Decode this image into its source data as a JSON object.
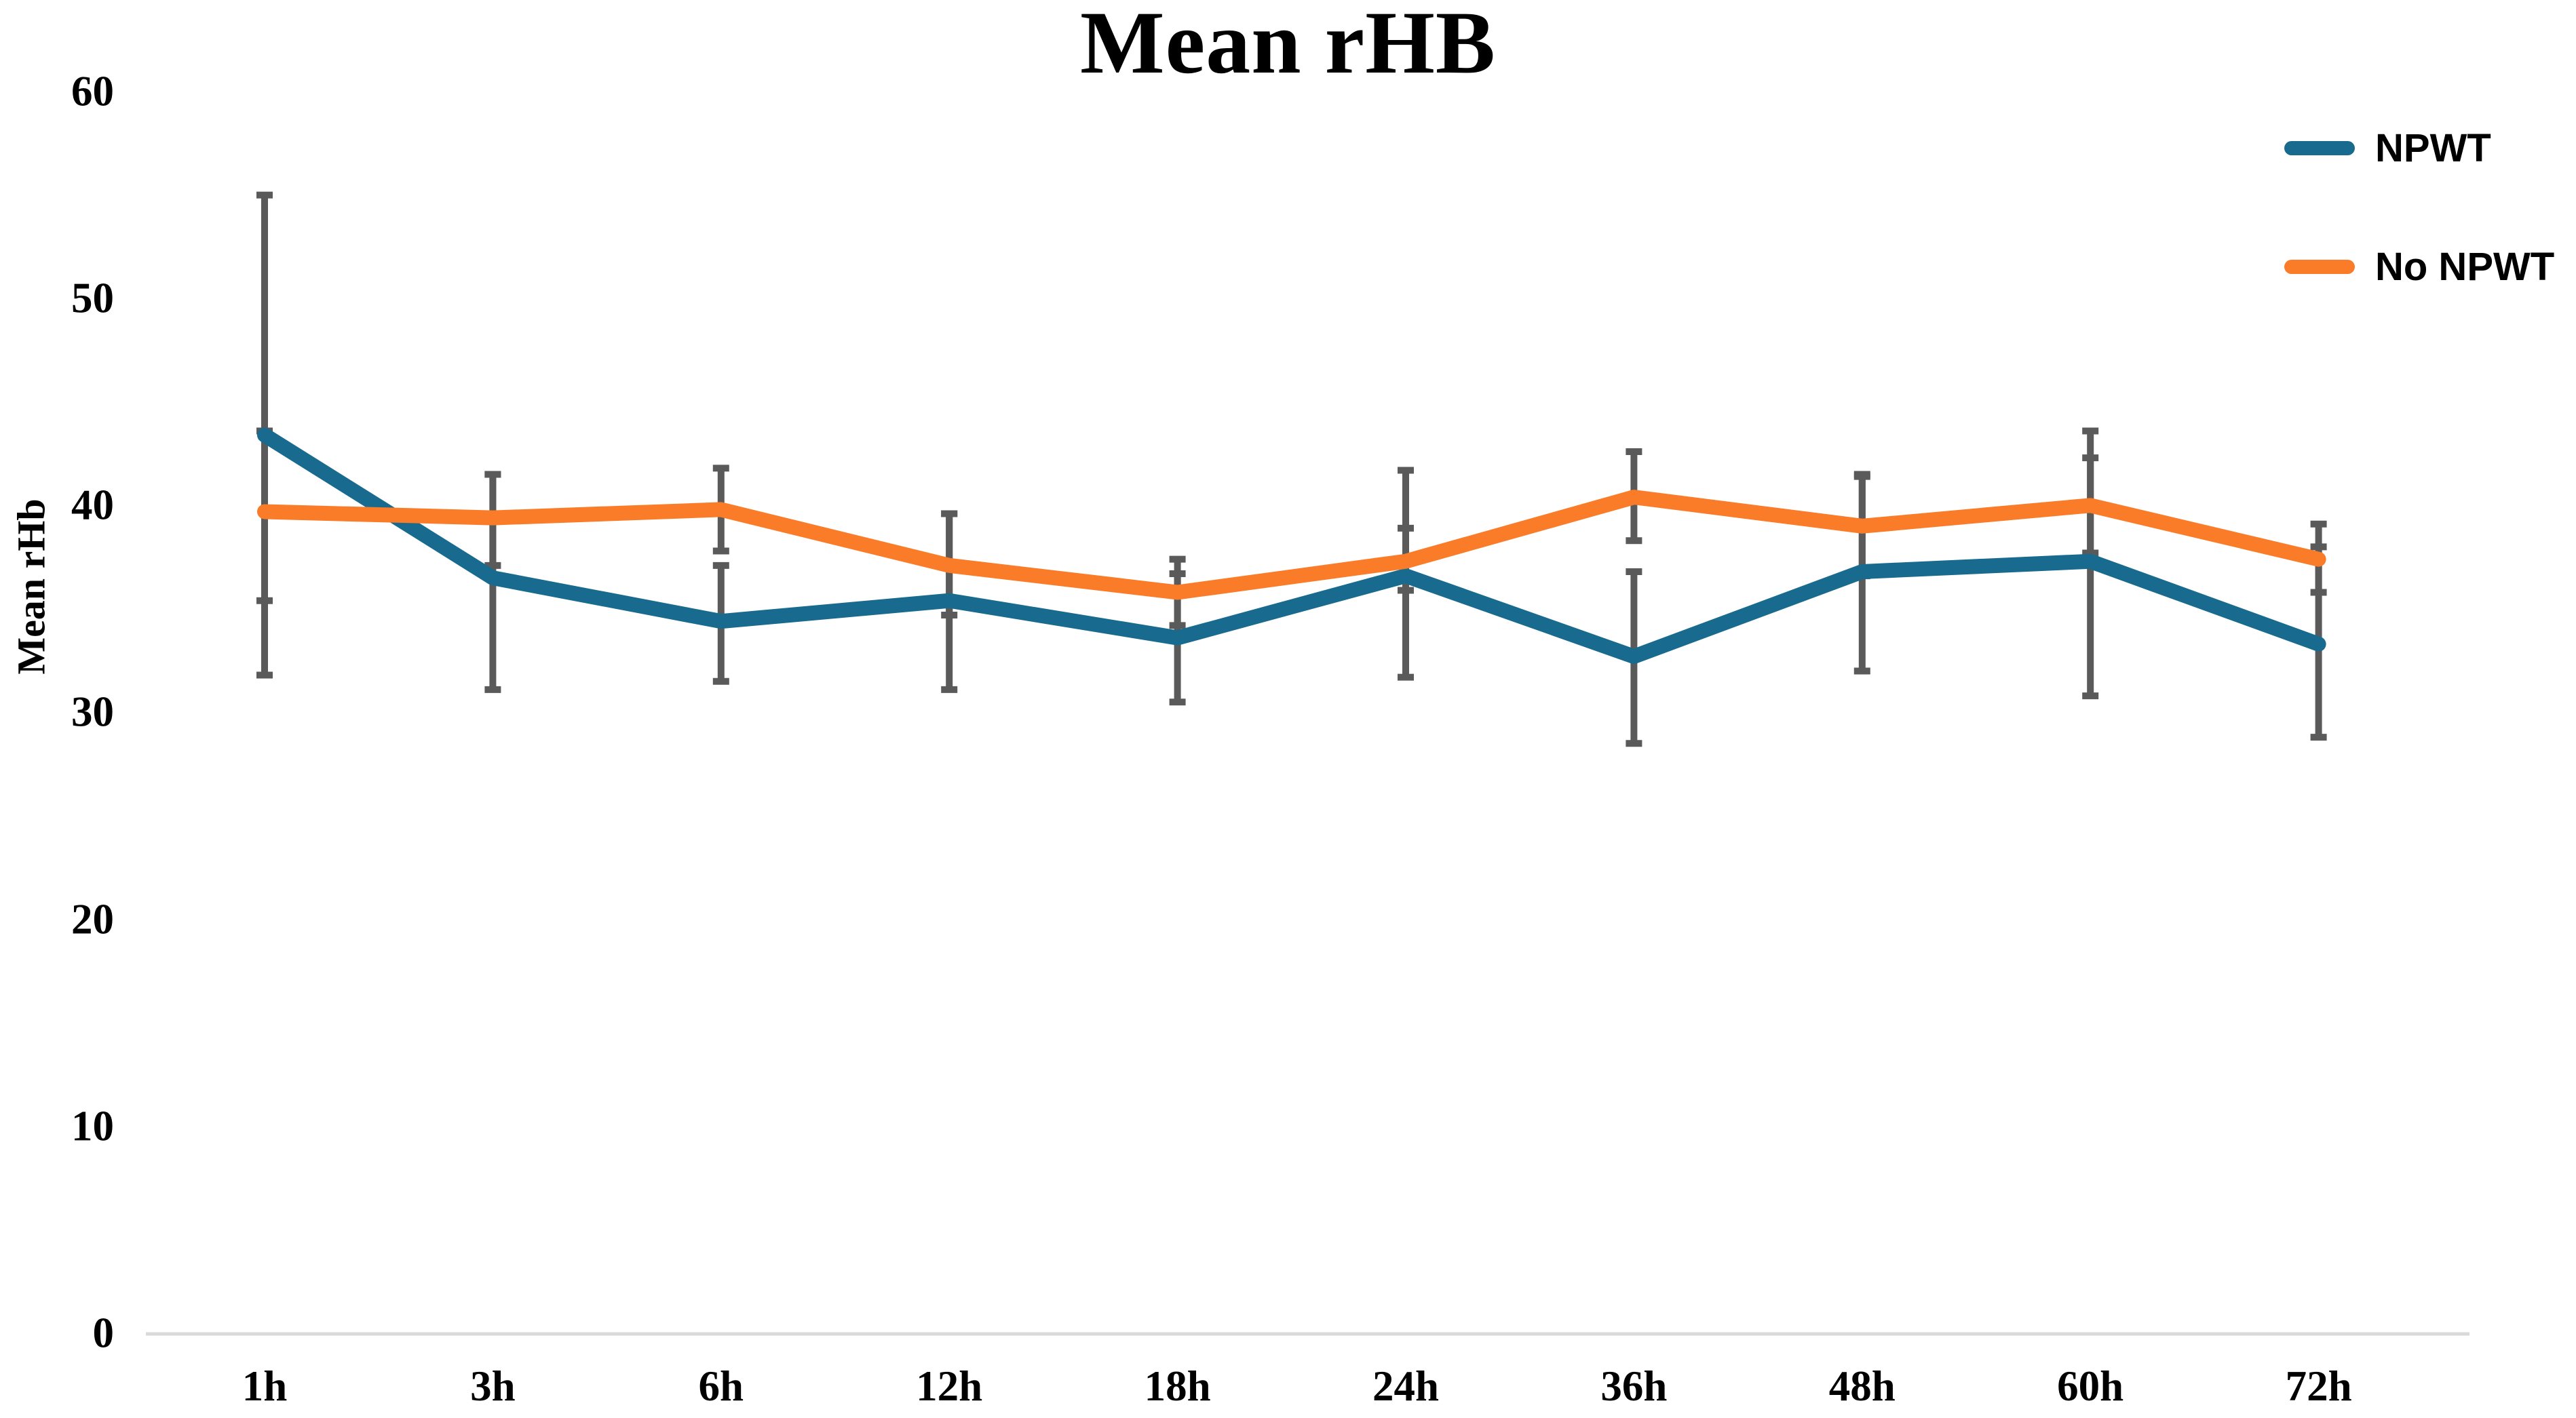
{
  "chart_data": {
    "type": "line",
    "title": "Mean rHB",
    "ylabel": "Mean rHb",
    "xlabel": "",
    "ylim": [
      0,
      60
    ],
    "y_ticks": [
      0,
      10,
      20,
      30,
      40,
      50,
      60
    ],
    "grid": false,
    "legend_position": "top-right",
    "categories": [
      "1h",
      "3h",
      "6h",
      "12h",
      "18h",
      "24h",
      "36h",
      "48h",
      "60h",
      "72h"
    ],
    "series": [
      {
        "name": "NPWT",
        "color": "#186b8e",
        "values": [
          43.4,
          36.5,
          34.4,
          35.4,
          33.6,
          36.6,
          32.7,
          36.8,
          37.3,
          33.3
        ],
        "error_low": [
          31.8,
          31.1,
          31.5,
          31.1,
          30.5,
          31.7,
          28.5,
          32.0,
          30.8,
          28.8
        ],
        "error_high": [
          55.0,
          41.5,
          37.1,
          39.6,
          36.7,
          41.7,
          36.8,
          41.5,
          43.6,
          38.0
        ]
      },
      {
        "name": "No NPWT",
        "color": "#fa7b28",
        "values": [
          39.7,
          39.4,
          39.8,
          37.1,
          35.8,
          37.3,
          40.4,
          39.0,
          40.0,
          37.4
        ],
        "error_low": [
          35.4,
          37.1,
          37.8,
          34.7,
          34.2,
          35.9,
          38.3,
          36.6,
          37.7,
          35.8
        ],
        "error_high": [
          43.6,
          41.5,
          41.8,
          39.6,
          37.4,
          38.9,
          42.6,
          41.4,
          42.3,
          39.1
        ]
      }
    ],
    "error_bar_color": "#5a5a5a",
    "axis_line_color": "#d9d9d9"
  }
}
